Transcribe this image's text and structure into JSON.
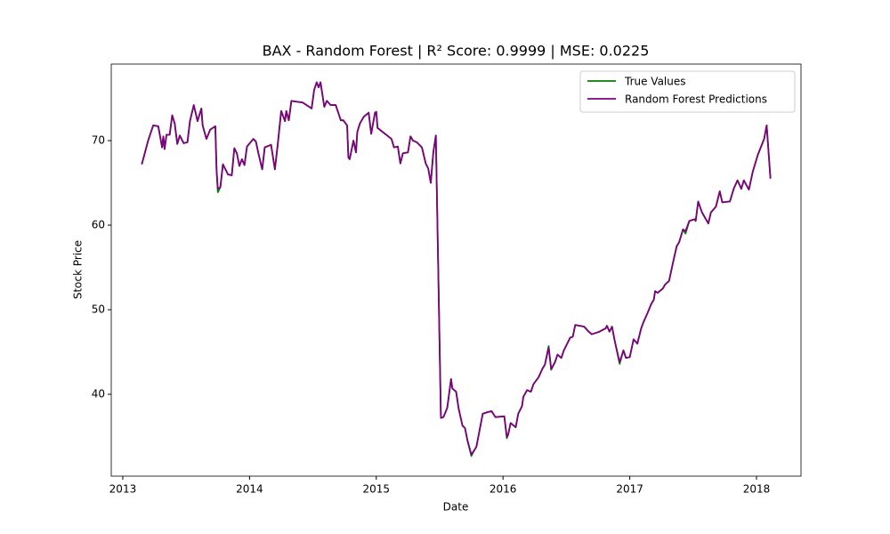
{
  "chart_data": {
    "type": "line",
    "title": "BAX - Random Forest | R² Score: 0.9999 | MSE: 0.0225",
    "xlabel": "Date",
    "ylabel": "Stock Price",
    "x": [
      2013.15,
      2013.2,
      2013.24,
      2013.28,
      2013.31,
      2013.32,
      2013.33,
      2013.345,
      2013.37,
      2013.39,
      2013.41,
      2013.43,
      2013.45,
      2013.48,
      2013.51,
      2013.53,
      2013.56,
      2013.59,
      2013.62,
      2013.63,
      2013.66,
      2013.69,
      2013.73,
      2013.74,
      2013.75,
      2013.77,
      2013.79,
      2013.83,
      2013.86,
      2013.88,
      2013.9,
      2013.92,
      2013.94,
      2013.96,
      2013.98,
      2014.03,
      2014.05,
      2014.07,
      2014.1,
      2014.12,
      2014.17,
      2014.2,
      2014.22,
      2014.25,
      2014.28,
      2014.29,
      2014.31,
      2014.33,
      2014.42,
      2014.49,
      2014.51,
      2014.53,
      2014.545,
      2014.56,
      2014.59,
      2014.61,
      2014.64,
      2014.68,
      2014.72,
      2014.74,
      2014.77,
      2014.78,
      2014.79,
      2014.82,
      2014.84,
      2014.85,
      2014.87,
      2014.9,
      2014.94,
      2014.96,
      2014.99,
      2015.0,
      2015.01,
      2015.12,
      2015.14,
      2015.17,
      2015.19,
      2015.21,
      2015.25,
      2015.27,
      2015.29,
      2015.32,
      2015.36,
      2015.39,
      2015.41,
      2015.43,
      2015.45,
      2015.47,
      2015.51,
      2015.53,
      2015.56,
      2015.59,
      2015.6,
      2015.63,
      2015.65,
      2015.68,
      2015.7,
      2015.72,
      2015.75,
      2015.77,
      2015.79,
      2015.84,
      2015.88,
      2015.91,
      2015.94,
      2016.01,
      2016.03,
      2016.04,
      2016.06,
      2016.1,
      2016.12,
      2016.15,
      2016.16,
      2016.19,
      2016.22,
      2016.24,
      2016.28,
      2016.31,
      2016.33,
      2016.36,
      2016.38,
      2016.41,
      2016.43,
      2016.46,
      2016.48,
      2016.53,
      2016.55,
      2016.57,
      2016.64,
      2016.67,
      2016.7,
      2016.74,
      2016.76,
      2016.81,
      2016.82,
      2016.84,
      2016.86,
      2016.88,
      2016.92,
      2016.95,
      2016.97,
      2017.0,
      2017.03,
      2017.06,
      2017.09,
      2017.11,
      2017.14,
      2017.17,
      2017.19,
      2017.2,
      2017.22,
      2017.26,
      2017.28,
      2017.31,
      2017.34,
      2017.37,
      2017.39,
      2017.42,
      2017.44,
      2017.47,
      2017.51,
      2017.52,
      2017.54,
      2017.57,
      2017.62,
      2017.64,
      2017.68,
      2017.71,
      2017.73,
      2017.79,
      2017.82,
      2017.85,
      2017.88,
      2017.9,
      2017.94,
      2017.97,
      2018.01,
      2018.06,
      2018.08,
      2018.11
    ],
    "series": [
      {
        "name": "True Values",
        "color": "#008000",
        "values": [
          67.2,
          70,
          71.8,
          71.7,
          69.2,
          70.5,
          69,
          70.7,
          70.7,
          73,
          72,
          69.6,
          70.6,
          69.7,
          69.8,
          72.3,
          74.2,
          72.3,
          73.8,
          71.8,
          70.2,
          71.3,
          71.7,
          66.5,
          63.9,
          64.5,
          67.2,
          66,
          65.9,
          69.1,
          68.5,
          67,
          67.8,
          67.1,
          69.3,
          70.2,
          69.9,
          68.5,
          66.6,
          69.2,
          69.5,
          66.6,
          69.2,
          73.5,
          72.3,
          73.5,
          72.4,
          74.7,
          74.5,
          73.8,
          76,
          76.9,
          76.3,
          76.9,
          74,
          74.7,
          74.2,
          74.2,
          72.4,
          72.4,
          71.8,
          68,
          67.8,
          70,
          68.6,
          71,
          72,
          72.8,
          73.3,
          70.8,
          73.3,
          73.4,
          71.5,
          70.2,
          69.2,
          69.3,
          67.3,
          68.5,
          68.6,
          70.5,
          70,
          69.8,
          69.2,
          67.3,
          66.7,
          65,
          68.6,
          70.6,
          37.2,
          37.3,
          38.4,
          41.8,
          40.7,
          40.3,
          38.3,
          36.3,
          36,
          34.5,
          32.7,
          33.3,
          33.8,
          37.7,
          37.9,
          38,
          37.3,
          37.4,
          34.8,
          35.2,
          36.6,
          36.1,
          37.7,
          38.6,
          39.7,
          40.5,
          40.3,
          41.2,
          42,
          43,
          43.5,
          45.7,
          42.9,
          43.8,
          44.7,
          44.3,
          45.2,
          46.7,
          46.8,
          48.2,
          48,
          47.5,
          47.1,
          47.3,
          47.4,
          47.8,
          48.1,
          47.4,
          48,
          46.4,
          43.6,
          45.2,
          44.3,
          44.4,
          46.5,
          46,
          47.8,
          48.6,
          49.6,
          50.7,
          51.2,
          52.2,
          52,
          52.5,
          53,
          53.4,
          55.5,
          57.5,
          58,
          59.5,
          59.0,
          60.5,
          60.7,
          60.5,
          62.8,
          61.5,
          60.2,
          61.5,
          62.2,
          64,
          62.7,
          62.8,
          64.3,
          65.3,
          64.3,
          65.3,
          64.2,
          66.3,
          68.3,
          70.2,
          71.8,
          65.5
        ]
      },
      {
        "name": "Random Forest Predictions",
        "color": "#800080",
        "values": [
          67.2,
          70,
          71.8,
          71.7,
          69.2,
          70.5,
          69,
          70.7,
          70.7,
          73,
          72,
          69.6,
          70.6,
          69.7,
          69.8,
          72.3,
          74.2,
          72.3,
          73.8,
          71.8,
          70.2,
          71.3,
          71.7,
          66.5,
          64.3,
          64.5,
          67.2,
          66,
          65.9,
          69.1,
          68.5,
          67,
          67.8,
          67.1,
          69.3,
          70.2,
          69.9,
          68.5,
          66.6,
          69.2,
          69.5,
          66.6,
          69.2,
          73.5,
          72.3,
          73.5,
          72.4,
          74.7,
          74.5,
          73.8,
          76,
          76.9,
          76.3,
          76.9,
          74,
          74.7,
          74.2,
          74.2,
          72.4,
          72.4,
          71.8,
          68,
          67.8,
          70,
          68.6,
          71,
          72,
          72.8,
          73.3,
          70.8,
          73.3,
          73.4,
          71.5,
          70.2,
          69.2,
          69.3,
          67.3,
          68.5,
          68.6,
          70.5,
          70,
          69.8,
          69.2,
          67.3,
          66.7,
          65,
          68.6,
          70.6,
          37.2,
          37.3,
          38.4,
          41.8,
          40.7,
          40.3,
          38.3,
          36.3,
          36,
          34.5,
          32.9,
          33.3,
          33.8,
          37.7,
          37.9,
          38,
          37.3,
          37.4,
          35,
          35.2,
          36.6,
          36.1,
          37.7,
          38.6,
          39.7,
          40.5,
          40.3,
          41.2,
          42,
          43,
          43.5,
          45.5,
          43,
          43.8,
          44.7,
          44.3,
          45.2,
          46.7,
          46.8,
          48.2,
          48,
          47.5,
          47.1,
          47.3,
          47.4,
          47.8,
          48.1,
          47.4,
          48,
          46.4,
          43.8,
          45.2,
          44.3,
          44.4,
          46.5,
          46,
          47.8,
          48.6,
          49.6,
          50.7,
          51.2,
          52.2,
          52,
          52.5,
          53,
          53.4,
          55.5,
          57.5,
          58,
          59.5,
          59.3,
          60.5,
          60.7,
          60.5,
          62.8,
          61.5,
          60.2,
          61.5,
          62.2,
          64,
          62.7,
          62.8,
          64.3,
          65.3,
          64.3,
          65.3,
          64.2,
          66.3,
          68.3,
          70.2,
          71.8,
          65.5
        ]
      }
    ],
    "xlim": [
      2012.909,
      2018.351
    ],
    "xticks": [
      2013,
      2014,
      2015,
      2016,
      2017,
      2018
    ],
    "ylim": [
      30.32,
      79.05
    ],
    "yticks": [
      40,
      50,
      60,
      70
    ],
    "grid": false,
    "legend": "upper right"
  }
}
